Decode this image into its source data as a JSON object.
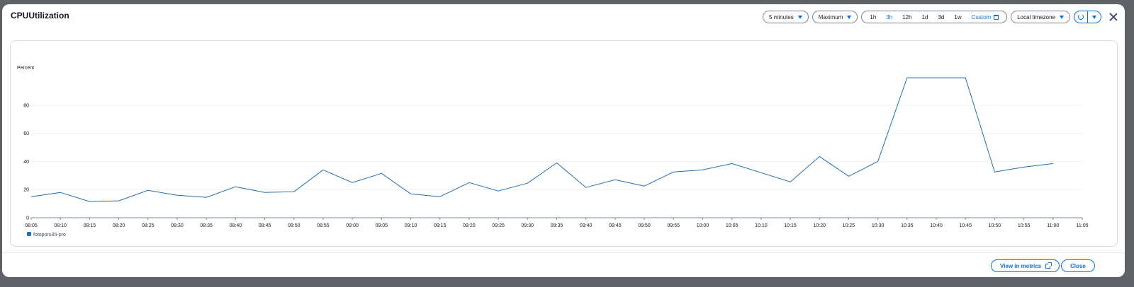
{
  "modal": {
    "title": "CPUUtilization"
  },
  "toolbar": {
    "period": "5 minutes",
    "statistic": "Maximum",
    "ranges": [
      "1h",
      "3h",
      "12h",
      "1d",
      "3d",
      "1w"
    ],
    "active_range": "3h",
    "custom_label": "Custom",
    "timezone": "Local timezone",
    "icons": [
      "chevron-down-icon",
      "calendar-icon",
      "refresh-icon",
      "close-icon"
    ]
  },
  "footer": {
    "view_label": "View in metrics",
    "close_label": "Close"
  },
  "colors": {
    "accent": "#0972d3",
    "series": "#1f6fb4",
    "overlay": "#5f6368"
  },
  "chart_data": {
    "type": "line",
    "ylabel": "Percent",
    "ylim": [
      0,
      100
    ],
    "yticks": [
      0,
      20,
      40,
      60,
      80
    ],
    "x": [
      "08:05",
      "08:10",
      "08:15",
      "08:20",
      "08:25",
      "08:30",
      "08:35",
      "08:40",
      "08:45",
      "08:50",
      "08:55",
      "09:00",
      "09:05",
      "09:10",
      "09:15",
      "09:20",
      "09:25",
      "09:30",
      "09:35",
      "09:40",
      "09:45",
      "09:50",
      "09:55",
      "10:00",
      "10:05",
      "10:10",
      "10:15",
      "10:20",
      "10:25",
      "10:30",
      "10:35",
      "10:40",
      "10:45",
      "10:50",
      "10:55",
      "11:00",
      "11:05"
    ],
    "grid": true,
    "legend": "bottom-left",
    "series": [
      {
        "name": "fotoporu35-pro",
        "values": [
          15,
          18,
          11.5,
          12,
          19.5,
          16,
          14.5,
          22,
          18,
          18.5,
          34,
          25,
          31.5,
          17,
          15,
          25,
          19,
          24.5,
          39,
          21.5,
          27,
          22.5,
          32.5,
          34,
          38.5,
          32,
          25.5,
          43.5,
          29.5,
          40,
          99.5,
          99.5,
          99.5,
          32.5,
          36,
          38.5,
          null
        ]
      }
    ]
  }
}
